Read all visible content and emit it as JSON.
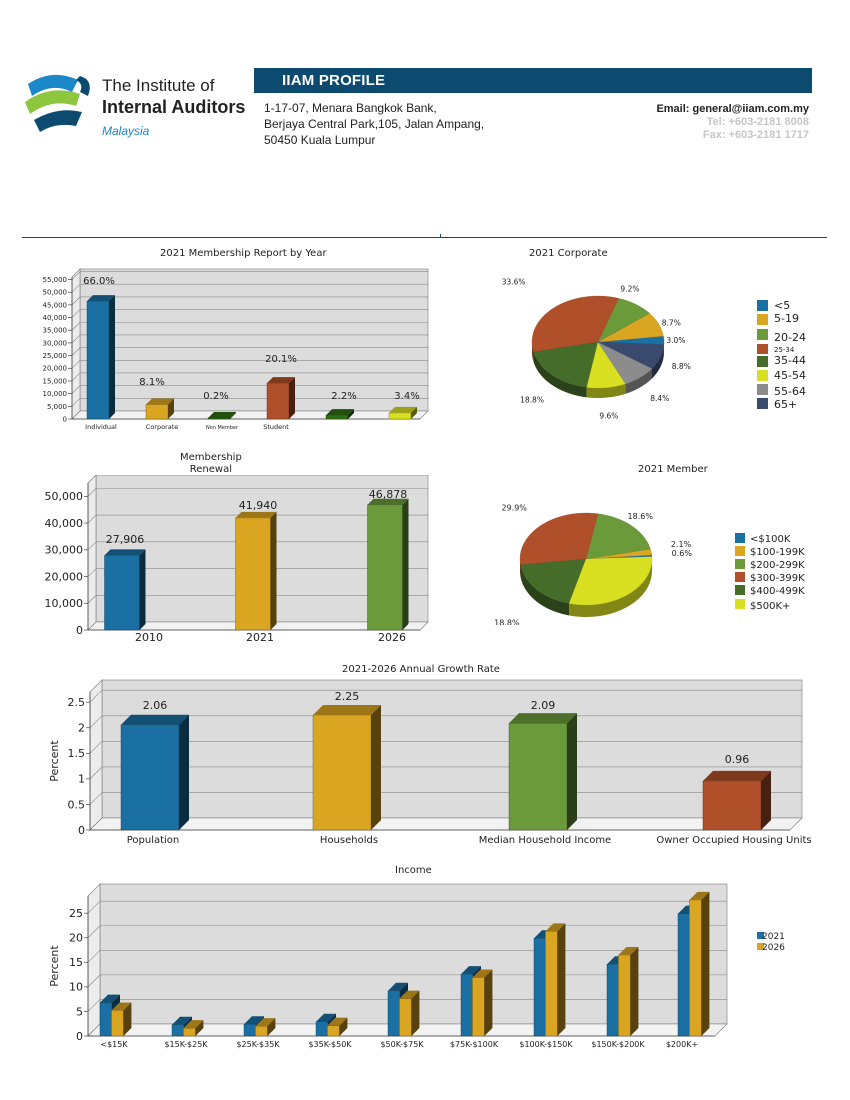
{
  "header": {
    "org_line1": "The Institute of",
    "org_line2": "Internal Auditors",
    "org_line3": "Malaysia",
    "banner_title": "IIAM PROFILE",
    "address": [
      "1-17-07, Menara Bangkok Bank,",
      "Berjaya Central Park,105, Jalan Ampang,",
      "50450 Kuala Lumpur"
    ],
    "email": "Email: general@iiam.com.my",
    "tel": "Tel: +603-2181 8008",
    "fax": "Fax: +603-2181 1717",
    "brand_colors": {
      "navy": "#0d4a6f",
      "blue": "#1c87c9",
      "green": "#8dc63f"
    }
  },
  "chart_data": [
    {
      "id": "membership",
      "type": "bar",
      "title": "2021 Membership Report by Year",
      "categories": [
        "Individual",
        "Corporate",
        "Non Member",
        "Student",
        "",
        ""
      ],
      "values": [
        46500,
        5700,
        143,
        14150,
        1550,
        2400
      ],
      "data_labels": [
        "66.0%",
        "8.1%",
        "0.2%",
        "20.1%",
        "2.2%",
        "3.4%"
      ],
      "colors": [
        "#1a6fa3",
        "#daa520",
        "#2e6e12",
        "#b0502a",
        "#2e6e12",
        "#d8e021"
      ],
      "yticks": [
        0,
        5000,
        10000,
        15000,
        20000,
        25000,
        30000,
        35000,
        40000,
        45000,
        50000,
        55000
      ],
      "ytick_labels": [
        "0",
        "5,000",
        "10,000",
        "15,000",
        "20,000",
        "25,000",
        "30,000",
        "35,000",
        "40,000",
        "45,000",
        "50,000",
        "55,000"
      ],
      "ylim": [
        0,
        56000
      ],
      "grid": true
    },
    {
      "id": "corporate",
      "type": "pie",
      "title": "2021 Corporate",
      "labels": [
        "<5",
        "5-19",
        "20-24",
        "25-34",
        "35-44",
        "45-54",
        "55-64",
        "65+"
      ],
      "values": [
        3.0,
        8.7,
        9.2,
        33.6,
        18.8,
        9.6,
        8.4,
        8.8
      ],
      "data_labels": [
        "3.0%",
        "8.7%",
        "9.2%",
        "33.6%",
        "18.8%",
        "9.6%",
        "8.4%",
        "8.8%"
      ],
      "colors": [
        "#1a6fa3",
        "#daa520",
        "#6a9a3a",
        "#b0502a",
        "#466c2a",
        "#d8e021",
        "#8c8c8c",
        "#3a4a6e"
      ],
      "legend": "right"
    },
    {
      "id": "renewal",
      "type": "bar",
      "title": "Membership\nRenewal",
      "categories": [
        "2010",
        "2021",
        "2026"
      ],
      "values": [
        27906,
        41940,
        46878
      ],
      "data_labels": [
        "27,906",
        "41,940",
        "46,878"
      ],
      "colors": [
        "#1a6fa3",
        "#daa520",
        "#6a9a3a"
      ],
      "yticks": [
        0,
        10000,
        20000,
        30000,
        40000,
        50000
      ],
      "ytick_labels": [
        "0",
        "10,000",
        "20,000",
        "30,000",
        "40,000",
        "50,000"
      ],
      "ylim": [
        0,
        55000
      ],
      "grid": true
    },
    {
      "id": "member",
      "type": "pie",
      "title": "2021 Member",
      "labels": [
        "<$100K",
        "$100-199K",
        "$200-299K",
        "$300-399K",
        "$400-499K",
        "$500K+"
      ],
      "values": [
        0.6,
        2.1,
        18.6,
        29.9,
        18.8,
        29.9
      ],
      "data_labels": [
        "0.6%",
        "2.1%",
        "18.6%",
        "29.9%",
        "18.8%",
        "29.9%"
      ],
      "colors": [
        "#1a6fa3",
        "#daa520",
        "#6a9a3a",
        "#b0502a",
        "#466c2a",
        "#d8e021"
      ],
      "legend": "right"
    },
    {
      "id": "growth",
      "type": "bar",
      "title": "2021-2026 Annual Growth Rate",
      "ylabel": "Percent",
      "categories": [
        "Population",
        "Households",
        "Median Household Income",
        "Owner Occupied Housing Units"
      ],
      "values": [
        2.06,
        2.25,
        2.09,
        0.96
      ],
      "data_labels": [
        "2.06",
        "2.25",
        "2.09",
        "0.96"
      ],
      "colors": [
        "#1a6fa3",
        "#daa520",
        "#6a9a3a",
        "#b0502a"
      ],
      "yticks": [
        0,
        0.5,
        1,
        1.5,
        2,
        2.5
      ],
      "ytick_labels": [
        "0",
        "0.5",
        "1",
        "1.5",
        "2",
        "2.5"
      ],
      "ylim": [
        0,
        2.7
      ],
      "grid": true
    },
    {
      "id": "income",
      "type": "bar",
      "title": "Income",
      "ylabel": "Percent",
      "categories": [
        "<$15K",
        "$15K-$25K",
        "$25K-$35K",
        "$35K-$50K",
        "$50K-$75K",
        "$75K-$100K",
        "$100K-$150K",
        "$150K-$200K",
        "$200K+"
      ],
      "series": [
        {
          "name": "2021",
          "values": [
            6.8,
            2.3,
            2.4,
            2.9,
            9.2,
            12.6,
            19.9,
            14.6,
            24.9
          ],
          "color": "#1a6fa3"
        },
        {
          "name": "2026",
          "values": [
            5.2,
            1.6,
            2.0,
            2.1,
            7.6,
            11.9,
            21.3,
            16.5,
            27.7
          ],
          "color": "#daa520"
        }
      ],
      "yticks": [
        0,
        5,
        10,
        15,
        20,
        25
      ],
      "ytick_labels": [
        "0",
        "5",
        "10",
        "15",
        "20",
        "25"
      ],
      "ylim": [
        0,
        28.5
      ],
      "legend": "right",
      "grid": true
    }
  ]
}
